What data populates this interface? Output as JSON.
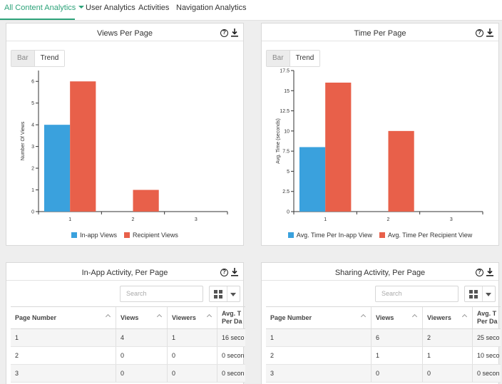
{
  "nav": {
    "tabs": [
      {
        "label": "All Content Analytics",
        "active": true
      },
      {
        "label": "User Analytics"
      },
      {
        "label": "Activities"
      },
      {
        "label": "Navigation Analytics"
      }
    ]
  },
  "colors": {
    "accent": "#2ea37a",
    "series1": "#3aa1dd",
    "series2": "#e8604a"
  },
  "views_panel": {
    "title": "Views Per Page",
    "toggle": {
      "bar": "Bar",
      "trend": "Trend"
    },
    "legend": [
      "In-app Views",
      "Recipient Views"
    ]
  },
  "time_panel": {
    "title": "Time Per Page",
    "toggle": {
      "bar": "Bar",
      "trend": "Trend"
    },
    "legend": [
      "Avg. Time Per In-app View",
      "Avg. Time Per Recipient View"
    ]
  },
  "inapp_panel": {
    "title": "In-App Activity, Per Page",
    "search_placeholder": "Search",
    "columns": [
      "Page Number",
      "Views",
      "Viewers",
      "Avg. T\nPer Da"
    ],
    "rows": [
      [
        "1",
        "4",
        "1",
        "16 seco"
      ],
      [
        "2",
        "0",
        "0",
        "0 secon"
      ],
      [
        "3",
        "0",
        "0",
        "0 secon"
      ]
    ]
  },
  "sharing_panel": {
    "title": "Sharing Activity, Per Page",
    "search_placeholder": "Search",
    "columns": [
      "Page Number",
      "Views",
      "Viewers",
      "Avg. T\nPer Da"
    ],
    "rows": [
      [
        "1",
        "6",
        "2",
        "25 seco"
      ],
      [
        "2",
        "1",
        "1",
        "10 seco"
      ],
      [
        "3",
        "0",
        "0",
        "0 secon"
      ]
    ]
  },
  "chart_data": [
    {
      "type": "bar",
      "title": "Views Per Page",
      "xlabel": "",
      "ylabel": "Number Of Views",
      "categories": [
        "1",
        "2",
        "3"
      ],
      "ylim": [
        0,
        6.5
      ],
      "yticks": [
        "0",
        "1",
        "2",
        "3",
        "4",
        "5",
        "6"
      ],
      "series": [
        {
          "name": "In-app Views",
          "values": [
            4,
            0,
            0
          ]
        },
        {
          "name": "Recipient Views",
          "values": [
            6,
            1,
            0
          ]
        }
      ]
    },
    {
      "type": "bar",
      "title": "Time Per Page",
      "xlabel": "",
      "ylabel": "Avg. Time (seconds)",
      "categories": [
        "1",
        "2",
        "3"
      ],
      "ylim": [
        0,
        17.5
      ],
      "yticks": [
        "0",
        "2.5",
        "5",
        "7.5",
        "10",
        "12.5",
        "15",
        "17.5"
      ],
      "series": [
        {
          "name": "Avg. Time Per In-app View",
          "values": [
            8,
            0,
            0
          ]
        },
        {
          "name": "Avg. Time Per Recipient View",
          "values": [
            16,
            10,
            0
          ]
        }
      ]
    }
  ]
}
